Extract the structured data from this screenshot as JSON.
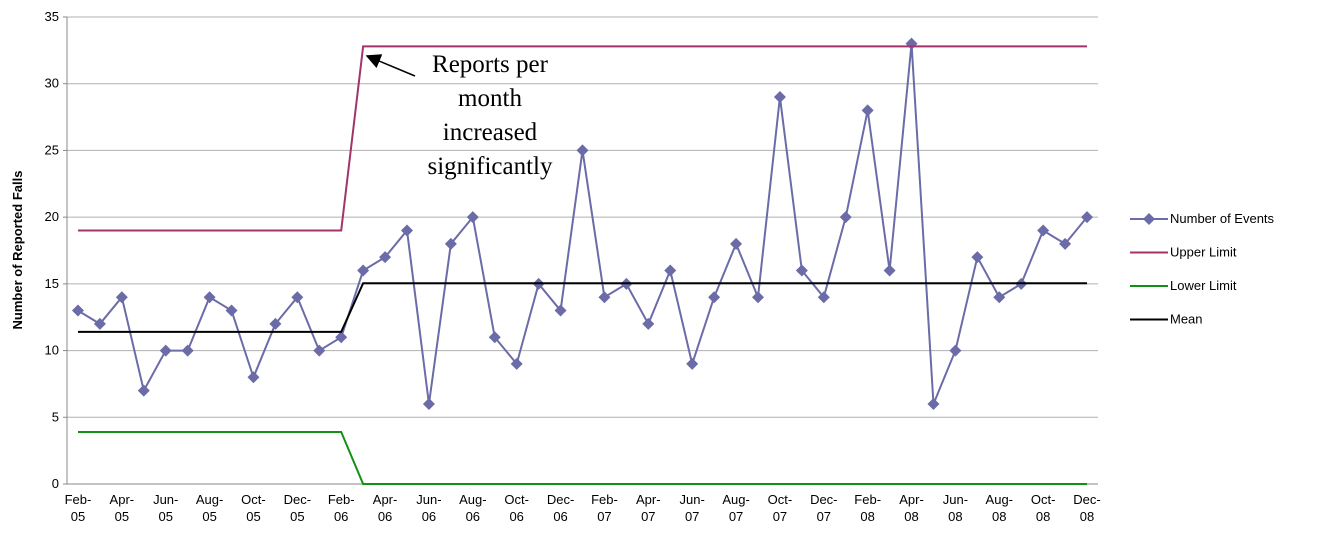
{
  "chart_data": {
    "type": "line",
    "y_label": "Number of Reported Falls",
    "annotation": [
      "Reports per",
      "month",
      "increased",
      "significantly"
    ],
    "categories": [
      "Feb-05",
      null,
      "Apr-05",
      null,
      "Jun-05",
      null,
      "Aug-05",
      null,
      "Oct-05",
      null,
      "Dec-05",
      null,
      "Feb-06",
      null,
      "Apr-06",
      null,
      "Jun-06",
      null,
      "Aug-06",
      null,
      "Oct-06",
      null,
      "Dec-06",
      null,
      "Feb-07",
      null,
      "Apr-07",
      null,
      "Jun-07",
      null,
      "Aug-07",
      null,
      "Oct-07",
      null,
      "Dec-07",
      null,
      "Feb-08",
      null,
      "Apr-08",
      null,
      "Jun-08",
      null,
      "Aug-08",
      null,
      "Oct-08",
      null,
      "Dec-08"
    ],
    "series": [
      {
        "name": "Number of Events",
        "color": "#6b6ba8",
        "marker": "diamond",
        "values": [
          13,
          12,
          14,
          7,
          10,
          10,
          14,
          13,
          8,
          12,
          14,
          10,
          11,
          16,
          17,
          19,
          6,
          18,
          20,
          11,
          9,
          15,
          13,
          25,
          14,
          15,
          12,
          16,
          9,
          14,
          18,
          14,
          29,
          16,
          14,
          20,
          28,
          16,
          33,
          6,
          10,
          17,
          14,
          15,
          19,
          18,
          20
        ]
      },
      {
        "name": "Upper Limit",
        "color": "#a3336a",
        "values": [
          19,
          19,
          19,
          19,
          19,
          19,
          19,
          19,
          19,
          19,
          19,
          19,
          19,
          32.8,
          32.8,
          32.8,
          32.8,
          32.8,
          32.8,
          32.8,
          32.8,
          32.8,
          32.8,
          32.8,
          32.8,
          32.8,
          32.8,
          32.8,
          32.8,
          32.8,
          32.8,
          32.8,
          32.8,
          32.8,
          32.8,
          32.8,
          32.8,
          32.8,
          32.8,
          32.8,
          32.8,
          32.8,
          32.8,
          32.8,
          32.8,
          32.8,
          32.8
        ]
      },
      {
        "name": "Lower Limit",
        "color": "#129212",
        "values": [
          3.9,
          3.9,
          3.9,
          3.9,
          3.9,
          3.9,
          3.9,
          3.9,
          3.9,
          3.9,
          3.9,
          3.9,
          3.9,
          0,
          0,
          0,
          0,
          0,
          0,
          0,
          0,
          0,
          0,
          0,
          0,
          0,
          0,
          0,
          0,
          0,
          0,
          0,
          0,
          0,
          0,
          0,
          0,
          0,
          0,
          0,
          0,
          0,
          0,
          0,
          0,
          0,
          0
        ]
      },
      {
        "name": "Mean",
        "color": "#000000",
        "values": [
          11.4,
          11.4,
          11.4,
          11.4,
          11.4,
          11.4,
          11.4,
          11.4,
          11.4,
          11.4,
          11.4,
          11.4,
          11.4,
          15.05,
          15.05,
          15.05,
          15.05,
          15.05,
          15.05,
          15.05,
          15.05,
          15.05,
          15.05,
          15.05,
          15.05,
          15.05,
          15.05,
          15.05,
          15.05,
          15.05,
          15.05,
          15.05,
          15.05,
          15.05,
          15.05,
          15.05,
          15.05,
          15.05,
          15.05,
          15.05,
          15.05,
          15.05,
          15.05,
          15.05,
          15.05,
          15.05,
          15.05
        ]
      }
    ],
    "ylim": [
      0,
      35
    ],
    "yticks": [
      0,
      5,
      10,
      15,
      20,
      25,
      30,
      35
    ],
    "grid": true,
    "legend": "right"
  }
}
